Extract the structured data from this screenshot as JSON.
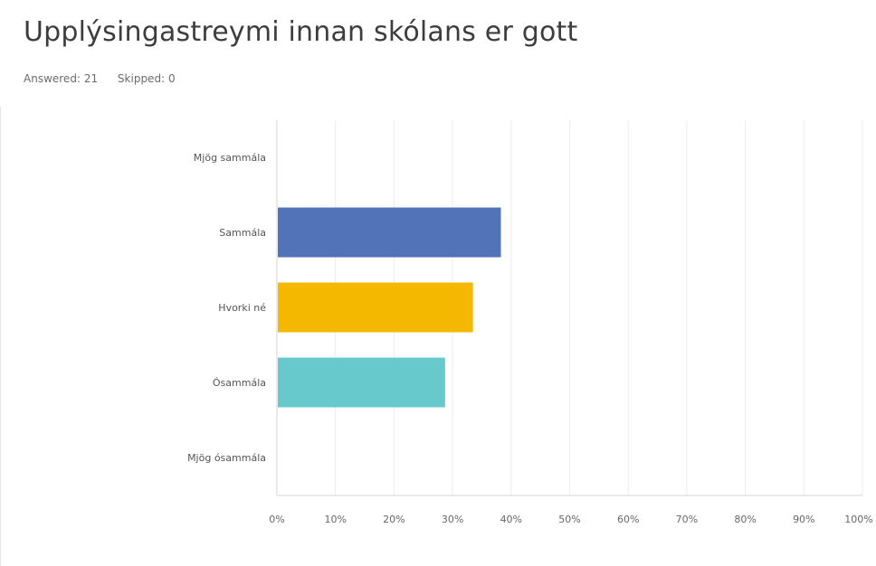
{
  "question": {
    "title": "Upplýsingastreymi innan skólans er gott"
  },
  "stats": {
    "answered_label": "Answered:",
    "answered_value": "21",
    "skipped_label": "Skipped:",
    "skipped_value": "0"
  },
  "chart_data": {
    "type": "bar",
    "orientation": "horizontal",
    "categories": [
      "Mjög sammála",
      "Sammála",
      "Hvorki né",
      "Ósammála",
      "Mjög ósammála"
    ],
    "values": [
      0,
      38.1,
      33.33,
      28.57,
      0
    ],
    "unit": "%",
    "colors": [
      "#5273b8",
      "#5273b8",
      "#f5b800",
      "#67c9cc",
      "#ef5f6a"
    ],
    "xlim": [
      0,
      100
    ],
    "x_ticks": [
      0,
      10,
      20,
      30,
      40,
      50,
      60,
      70,
      80,
      90,
      100
    ],
    "x_tick_labels": [
      "0%",
      "10%",
      "20%",
      "30%",
      "40%",
      "50%",
      "60%",
      "70%",
      "80%",
      "90%",
      "100%"
    ],
    "grid": true,
    "legend": "none"
  }
}
